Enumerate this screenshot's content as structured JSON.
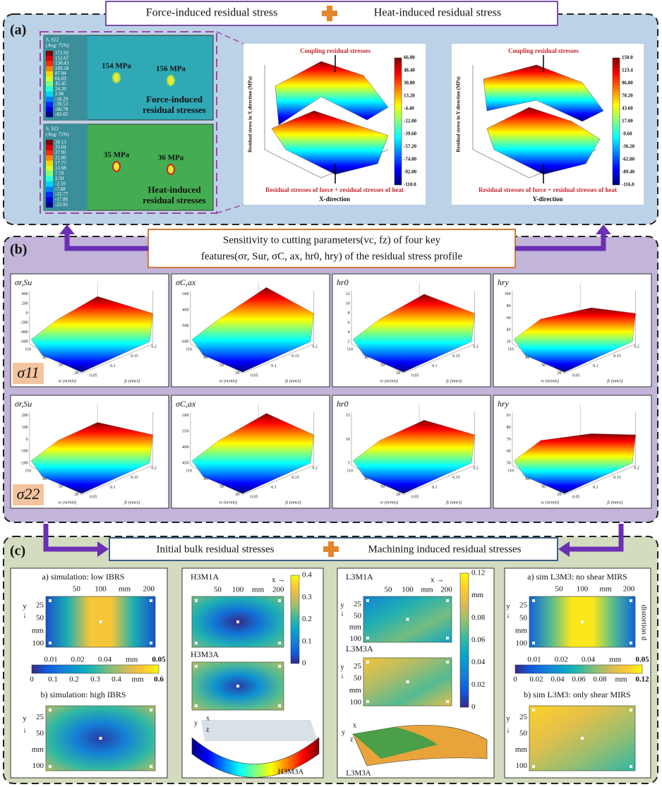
{
  "header": {
    "left": "Force-induced residual stress",
    "right": "Heat-induced residual stress"
  },
  "panel_a": {
    "label": "(a)",
    "contours": [
      {
        "legend_title": "S, S22",
        "legend_avg": "(Avg: 75%)",
        "legend_values": [
          "172.92",
          "151.67",
          "130.43",
          "109.18",
          "87.94",
          "66.69",
          "45.45",
          "24.20",
          "2.96",
          "-18.29",
          "-39.53",
          "-60.78",
          "-82.02"
        ],
        "peaks": [
          "154 MPa",
          "156 MPa"
        ],
        "caption": [
          "Force-induced",
          "residual stresses"
        ]
      },
      {
        "legend_title": "S, S22",
        "legend_avg": "(Avg: 75%)",
        "legend_values": [
          "38.13",
          "33.04",
          "27.95",
          "22.86",
          "17.77",
          "12.68",
          "7.59",
          "2.50",
          "-2.59",
          "-7.68",
          "-12.77",
          "-17.86",
          "-22.95"
        ],
        "peaks": [
          "35 MPa",
          "36 MPa"
        ],
        "caption": [
          "Heat-induced",
          "residual stresses"
        ]
      }
    ],
    "plots": [
      {
        "top_note": "Coupling residual stresses",
        "bottom_note": "Residual stresses of force + residual stresses of heat",
        "x_label": "X-direction",
        "z_label": "Residual stress in X direction (MPa)",
        "colorbar": [
          "66.00",
          "48.40",
          "30.80",
          "13.20",
          "-4.40",
          "-22.00",
          "-39.60",
          "-57.20",
          "-74.80",
          "-92.00",
          "-110.0"
        ]
      },
      {
        "top_note": "Coupling residual stresses",
        "bottom_note": "Residual stresses of force + residual stresses of heat",
        "x_label": "Y-direction",
        "z_label": "Residual stress in Y direction (MPa)",
        "colorbar": [
          "150.0",
          "123.4",
          "96.80",
          "70.20",
          "43.60",
          "17.00",
          "-9.60",
          "-36.20",
          "-62.80",
          "-89.40",
          "-116.0"
        ]
      }
    ]
  },
  "panel_b": {
    "label": "(b)",
    "banner": [
      "Sensitivity to cutting parameters(vc, fz) of four key",
      "features(σr, Sur, σC, ax, hr0, hry) of the residual stress profile"
    ],
    "x_label": "vc (m/min)",
    "y_label": "fz (mm/z)",
    "vc_ticks": [
      "110",
      "80",
      "50",
      "20"
    ],
    "fz_ticks": [
      "0.05",
      "0.1",
      "0.15",
      "0.2"
    ],
    "rows": [
      {
        "label": "σ11",
        "plots": [
          {
            "title": "σr,Su",
            "z_ticks": [
              "400",
              "200",
              "0",
              "-200",
              "-400",
              "-600"
            ]
          },
          {
            "title": "σC,ax",
            "z_ticks": [
              "-300",
              "-400",
              "-500",
              "-600"
            ]
          },
          {
            "title": "hr0",
            "z_ticks": [
              "12",
              "10",
              "8",
              "6",
              "4",
              "2"
            ]
          },
          {
            "title": "hry",
            "z_ticks": [
              "100",
              "80",
              "60",
              "40",
              "20"
            ]
          }
        ]
      },
      {
        "label": "σ22",
        "plots": [
          {
            "title": "σr,Su",
            "z_ticks": [
              "200",
              "100",
              "0",
              "-100",
              "-200"
            ]
          },
          {
            "title": "σC,ax",
            "z_ticks": [
              "-300",
              "-350",
              "-400",
              "-450"
            ]
          },
          {
            "title": "hr0",
            "z_ticks": [
              "15",
              "10",
              "5"
            ]
          },
          {
            "title": "hry",
            "z_ticks": [
              "91",
              "80",
              "70",
              "60",
              "50"
            ]
          }
        ]
      }
    ]
  },
  "panel_c": {
    "label": "(c)",
    "banner": {
      "left": "Initial bulk residual stresses",
      "right": "Machining induced residual stresses"
    },
    "x_ticks": [
      "50",
      "100",
      "mm",
      "200"
    ],
    "y_ticks": [
      "25",
      "50",
      "mm",
      "100"
    ],
    "y_axis": "y",
    "down": "↓",
    "x_axis": "x →",
    "col1": {
      "title_a": "a) simulation: low IBRS",
      "title_b": "b) simulation: high IBRS",
      "bar_top": [
        "0.01",
        "0.02",
        "0.04",
        "mm",
        "0.05"
      ],
      "bar_bottom": [
        "0",
        "0.1",
        "0.2",
        "0.3",
        "0.4",
        "mm",
        "0.6"
      ]
    },
    "col2": {
      "title_a": "H3M1A",
      "title_b": "H3M3A",
      "colorbar": [
        "0.4",
        "0.3",
        "0.2",
        "0.1",
        "0"
      ],
      "shape_label": "H3M3A",
      "axes": [
        "y",
        "x",
        "z"
      ]
    },
    "col3": {
      "title_a": "L3M1A",
      "title_b": "L3M3A",
      "colorbar": [
        "0.12",
        "mm",
        "0.08",
        "0.06",
        "0.04",
        "0.02",
        "0"
      ],
      "shape_label": "L3M3A",
      "axes": [
        "y",
        "x",
        "z"
      ]
    },
    "col4": {
      "title_a": "a) sim L3M3: no shear MIRS",
      "title_b": "b) sim L3M3: only shear MIRS",
      "side": "distortion d",
      "bar_top": [
        "0.01",
        "0.02",
        "0.04",
        "mm",
        "0.05"
      ],
      "bar_bottom": [
        "0",
        "0.02",
        "0.04",
        "0.06",
        "0.08",
        "mm",
        "0.12"
      ]
    }
  }
}
